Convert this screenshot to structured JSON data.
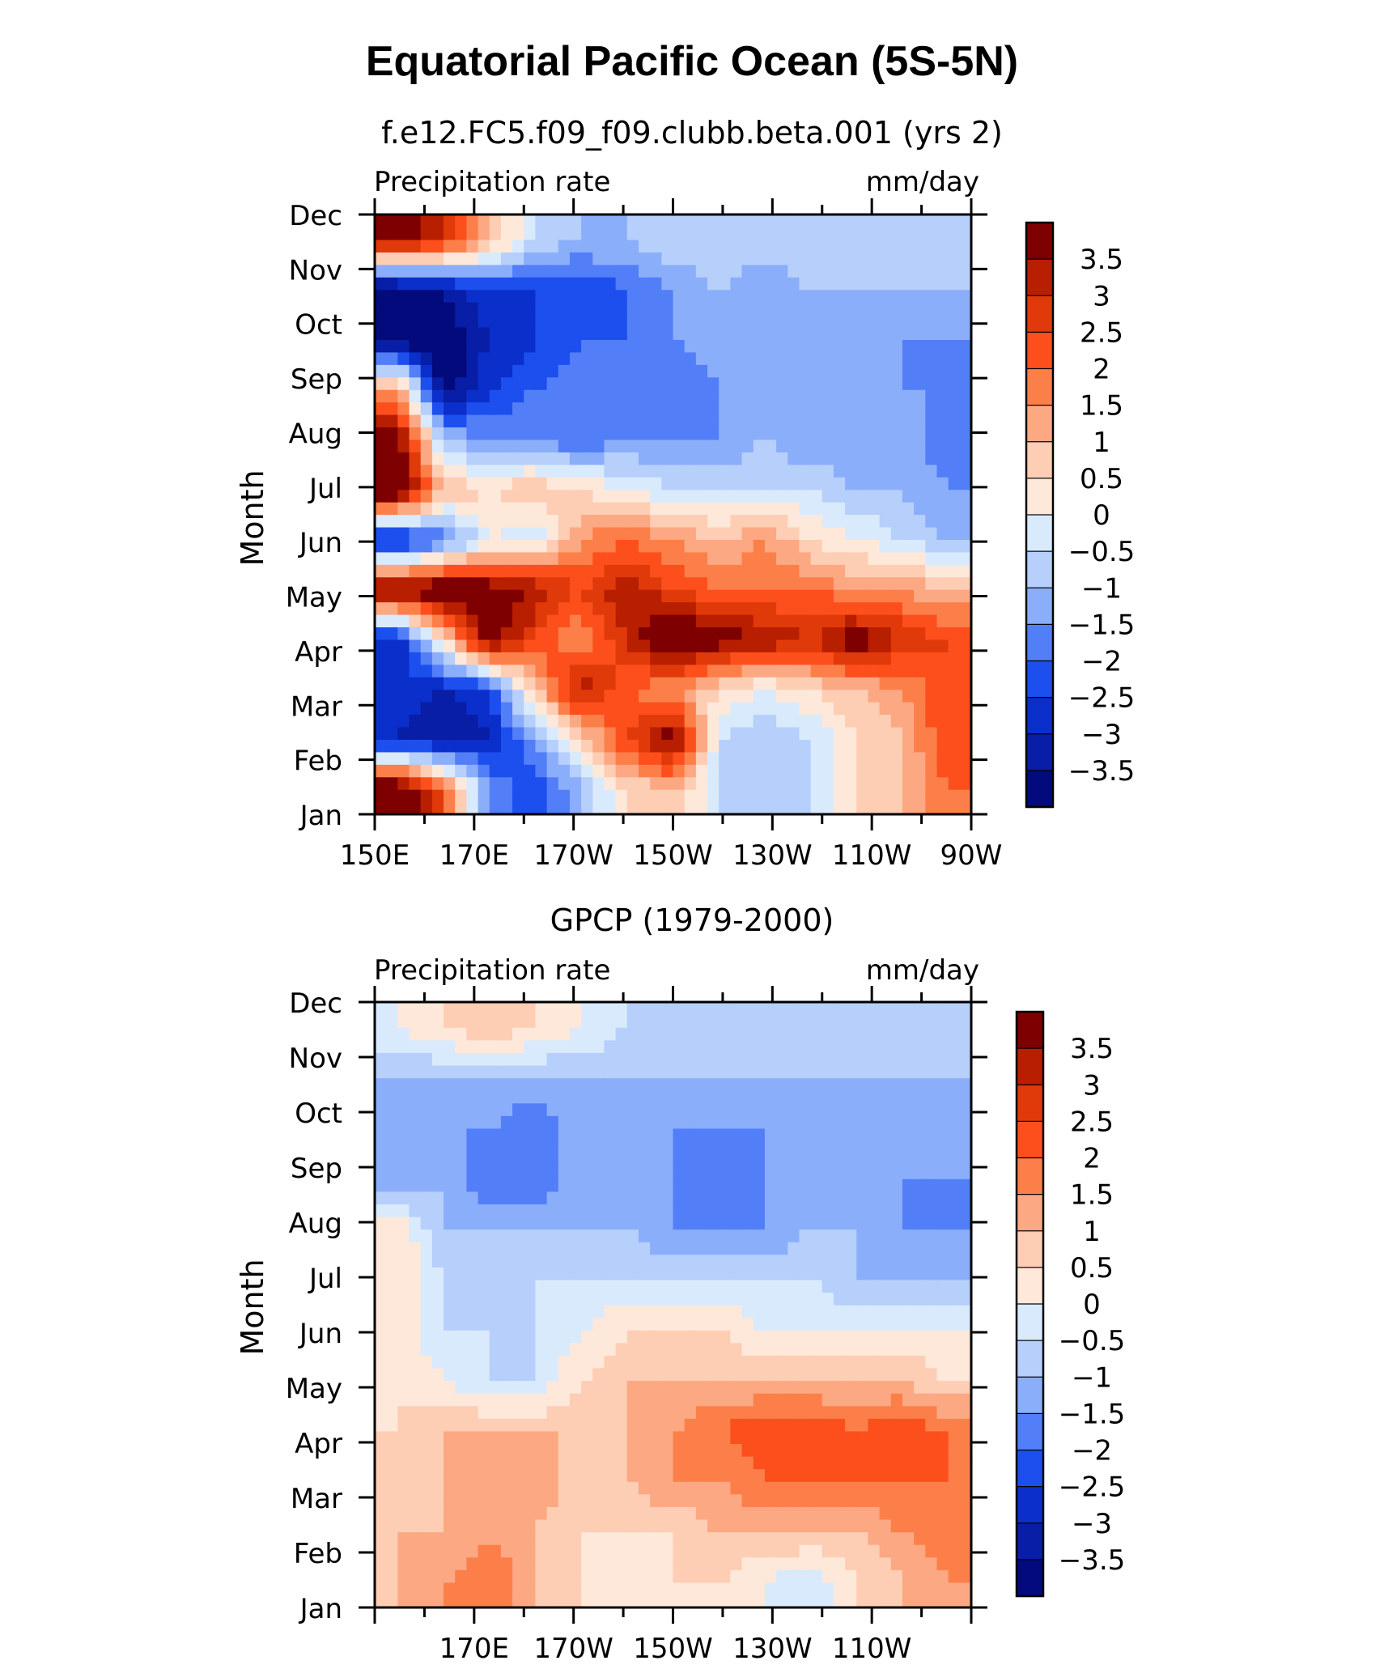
{
  "page_title": "Equatorial Pacific Ocean (5S-5N)",
  "chart_data": [
    {
      "type": "heatmap",
      "title": "f.e12.FC5.f09_f09.clubb.beta.001 (yrs 2)",
      "left_string": "Precipitation rate",
      "right_string": "mm/day",
      "ylabel": "Month",
      "x_tick_labels": [
        "150E",
        "170E",
        "170W",
        "150W",
        "130W",
        "110W",
        "90W"
      ],
      "y_tick_labels": [
        "Jan",
        "Feb",
        "Mar",
        "Apr",
        "May",
        "Jun",
        "Jul",
        "Aug",
        "Sep",
        "Oct",
        "Nov",
        "Dec"
      ],
      "xlim": [
        150,
        270
      ],
      "colorbar_labels": [
        "3.5",
        "3",
        "2.5",
        "2",
        "1.5",
        "1",
        "0.5",
        "0",
        "−0.5",
        "−1",
        "−1.5",
        "−2",
        "−2.5",
        "−3",
        "−3.5"
      ],
      "colorbar_levels": [
        3.5,
        3,
        2.5,
        2,
        1.5,
        1,
        0.5,
        0,
        -0.5,
        -1,
        -1.5,
        -2,
        -2.5,
        -3,
        -3.5
      ],
      "columns_lon": [
        150,
        160,
        170,
        180,
        190,
        200,
        210,
        220,
        230,
        240,
        250,
        260,
        270
      ],
      "values": [
        [
          4.5,
          2.5,
          -1.5,
          -2.5,
          -1.0,
          0.5,
          1.0,
          -0.5,
          -1.0,
          -0.5,
          0.5,
          1.0,
          2.0
        ],
        [
          -3.0,
          -3.5,
          -3.0,
          -1.5,
          0.5,
          2.5,
          4.0,
          -0.5,
          -1.0,
          -0.5,
          0.5,
          1.0,
          2.5
        ],
        [
          -2.5,
          -3.0,
          -2.5,
          1.0,
          3.5,
          2.0,
          1.5,
          0.5,
          0.0,
          0.5,
          1.0,
          1.5,
          2.5
        ],
        [
          -3.0,
          0.5,
          4.0,
          2.5,
          1.5,
          3.0,
          4.5,
          4.0,
          3.5,
          3.0,
          4.0,
          3.0,
          2.5
        ],
        [
          4.0,
          4.5,
          4.0,
          3.5,
          2.5,
          3.5,
          2.5,
          2.0,
          2.0,
          2.0,
          1.5,
          1.5,
          1.0
        ],
        [
          -3.0,
          -2.0,
          0.0,
          -0.5,
          1.5,
          2.0,
          1.5,
          1.0,
          1.5,
          0.5,
          0.0,
          -0.5,
          -1.0
        ],
        [
          4.5,
          1.0,
          0.5,
          1.0,
          0.5,
          0.0,
          -0.5,
          -0.5,
          -0.5,
          -0.5,
          -1.0,
          -1.0,
          -1.5
        ],
        [
          4.0,
          -1.0,
          -1.5,
          -1.5,
          -2.0,
          -1.5,
          -1.5,
          -1.5,
          -1.0,
          -1.5,
          -1.5,
          -1.0,
          -2.0
        ],
        [
          1.5,
          -4.0,
          -2.5,
          -2.0,
          -1.5,
          -2.0,
          -2.0,
          -1.5,
          -1.5,
          -1.0,
          -1.5,
          -1.5,
          -1.5
        ],
        [
          -4.0,
          -4.0,
          -3.0,
          -2.5,
          -2.0,
          -2.0,
          -1.5,
          -1.0,
          -1.5,
          -1.5,
          -1.0,
          -1.5,
          -1.5
        ],
        [
          -4.0,
          -3.5,
          -2.5,
          -2.5,
          -2.5,
          -2.0,
          -1.5,
          -1.0,
          -1.5,
          -1.0,
          -1.0,
          -1.0,
          -1.0
        ],
        [
          4.0,
          3.0,
          1.0,
          -0.5,
          -1.0,
          -1.0,
          -0.5,
          -0.5,
          -0.5,
          -0.5,
          -0.5,
          -0.5,
          -0.5
        ]
      ]
    },
    {
      "type": "heatmap",
      "title": "GPCP (1979-2000)",
      "left_string": "Precipitation rate",
      "right_string": "mm/day",
      "ylabel": "Month",
      "x_tick_labels": [
        "170E",
        "170W",
        "150W",
        "130W",
        "110W"
      ],
      "y_tick_labels": [
        "Jan",
        "Feb",
        "Mar",
        "Apr",
        "May",
        "Jun",
        "Jul",
        "Aug",
        "Sep",
        "Oct",
        "Nov",
        "Dec"
      ],
      "xlim": [
        150,
        270
      ],
      "colorbar_labels": [
        "3.5",
        "3",
        "2.5",
        "2",
        "1.5",
        "1",
        "0.5",
        "0",
        "−0.5",
        "−1",
        "−1.5",
        "−2",
        "−2.5",
        "−3",
        "−3.5"
      ],
      "colorbar_levels": [
        3.5,
        3,
        2.5,
        2,
        1.5,
        1,
        0.5,
        0,
        -0.5,
        -1,
        -1.5,
        -2,
        -2.5,
        -3,
        -3.5
      ],
      "columns_lon": [
        150,
        160,
        170,
        180,
        190,
        200,
        210,
        220,
        230,
        240,
        250,
        260,
        270
      ],
      "values": [
        [
          1.0,
          1.5,
          2.0,
          1.0,
          0.5,
          0.5,
          0.5,
          0.5,
          0.0,
          -0.5,
          0.5,
          1.0,
          1.5
        ],
        [
          1.0,
          1.0,
          1.5,
          1.0,
          0.5,
          0.5,
          0.5,
          1.0,
          1.0,
          1.0,
          1.0,
          1.5,
          2.0
        ],
        [
          1.0,
          1.0,
          1.5,
          1.5,
          0.5,
          1.0,
          1.5,
          1.5,
          2.0,
          2.0,
          2.0,
          2.0,
          2.0
        ],
        [
          0.5,
          1.0,
          1.0,
          1.0,
          1.0,
          1.0,
          1.5,
          2.0,
          2.5,
          2.5,
          2.0,
          2.5,
          2.0
        ],
        [
          0.5,
          0.0,
          -0.5,
          -0.5,
          0.5,
          1.0,
          1.0,
          1.0,
          1.0,
          1.0,
          1.0,
          1.0,
          0.5
        ],
        [
          0.5,
          -0.5,
          -0.5,
          -0.5,
          0.0,
          0.5,
          0.5,
          0.5,
          0.0,
          0.0,
          0.0,
          0.0,
          0.0
        ],
        [
          0.5,
          -0.5,
          -1.0,
          -0.5,
          -0.5,
          -0.5,
          -0.5,
          -0.5,
          -0.5,
          -0.5,
          -1.0,
          -1.0,
          -1.0
        ],
        [
          0.5,
          -1.0,
          -1.0,
          -1.0,
          -1.0,
          -1.0,
          -1.5,
          -1.5,
          -1.5,
          -1.0,
          -1.0,
          -1.5,
          -1.5
        ],
        [
          -1.5,
          -1.0,
          -2.0,
          -2.0,
          -1.0,
          -1.0,
          -1.5,
          -1.5,
          -1.5,
          -1.5,
          -1.0,
          -1.5,
          -1.5
        ],
        [
          -1.0,
          -1.5,
          -1.5,
          -2.0,
          -1.0,
          -1.0,
          -1.5,
          -1.5,
          -1.5,
          -1.0,
          -1.0,
          -1.5,
          -1.0
        ],
        [
          -1.0,
          -1.0,
          -1.0,
          -1.0,
          -1.0,
          -1.0,
          -1.0,
          -1.0,
          -1.0,
          -1.0,
          -1.0,
          -1.0,
          -1.0
        ],
        [
          0.0,
          0.5,
          1.0,
          0.5,
          0.0,
          -0.5,
          -0.5,
          -0.5,
          -0.5,
          -0.5,
          -0.5,
          -0.5,
          -0.5
        ]
      ]
    }
  ]
}
